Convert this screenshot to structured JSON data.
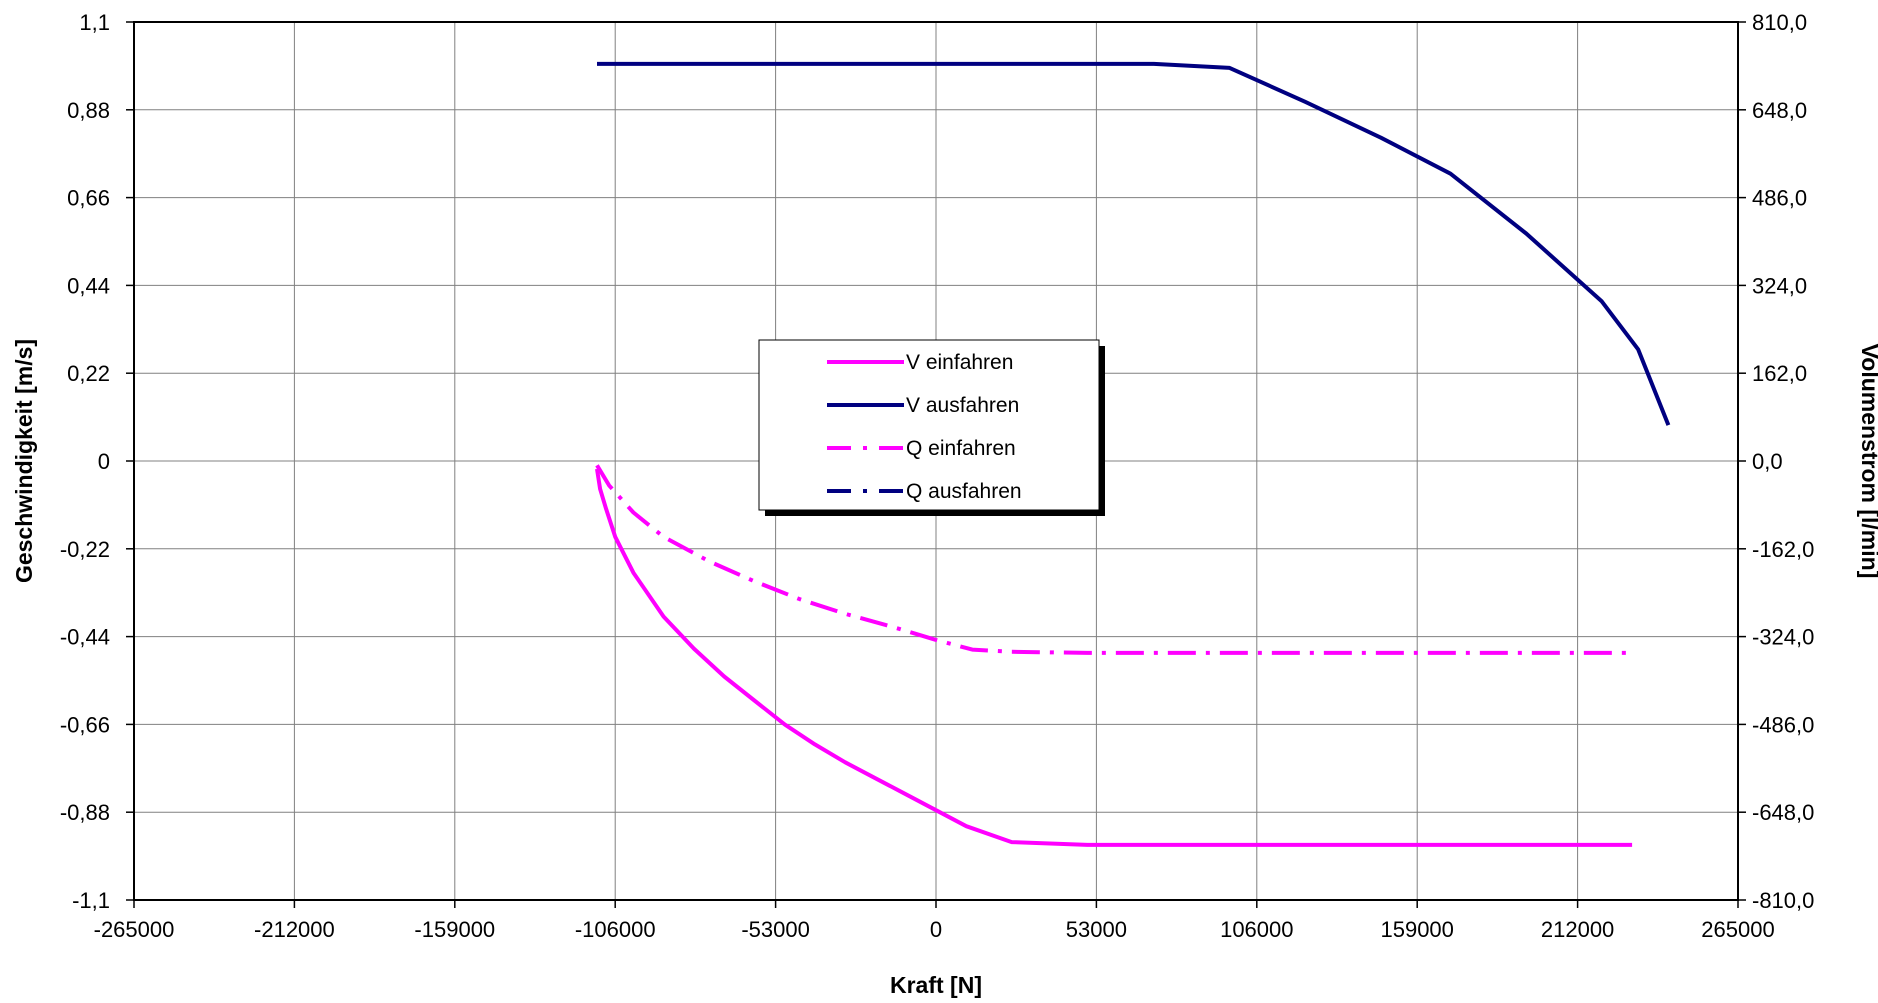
{
  "chart_data": {
    "type": "line",
    "title": "",
    "xlabel": "Kraft [N]",
    "ylabel": "Geschwindigkeit [m/s]",
    "y2label": "Volumenstrom [l/min]",
    "xlim": [
      -265000,
      265000
    ],
    "ylim": [
      -1.1,
      1.1
    ],
    "y2lim": [
      -810,
      810
    ],
    "xticks": [
      "-265000",
      "-212000",
      "-159000",
      "-106000",
      "-53000",
      "0",
      "53000",
      "106000",
      "159000",
      "212000",
      "265000"
    ],
    "yticks": [
      "1,1",
      "0,88",
      "0,66",
      "0,44",
      "0,22",
      "0",
      "-0,22",
      "-0,44",
      "-0,66",
      "-0,88",
      "-1,1"
    ],
    "y2ticks": [
      "810,0",
      "648,0",
      "486,0",
      "324,0",
      "162,0",
      "0,0",
      "-162,0",
      "-324,0",
      "-486,0",
      "-648,0",
      "-810,0"
    ],
    "grid": true,
    "legend_position": "center",
    "series": [
      {
        "name": "V einfahren",
        "axis": "left",
        "color": "#ff00ff",
        "dash": "solid",
        "x": [
          -112000,
          -111000,
          -109000,
          -106000,
          -100000,
          -90000,
          -80000,
          -70000,
          -60000,
          -50000,
          -40000,
          -30000,
          -20000,
          -10000,
          0,
          10000,
          25000,
          50000,
          100000,
          150000,
          200000,
          230000
        ],
        "y": [
          -0.02,
          -0.07,
          -0.12,
          -0.19,
          -0.28,
          -0.39,
          -0.47,
          -0.54,
          -0.6,
          -0.66,
          -0.71,
          -0.755,
          -0.795,
          -0.835,
          -0.875,
          -0.915,
          -0.955,
          -0.962,
          -0.962,
          -0.962,
          -0.962,
          -0.962
        ]
      },
      {
        "name": "V ausfahren",
        "axis": "left",
        "color": "#000080",
        "dash": "solid",
        "x": [
          -112000,
          -50000,
          0,
          50000,
          72000,
          97000,
          122000,
          147000,
          170000,
          195000,
          220000,
          232000,
          242000
        ],
        "y": [
          0.995,
          0.995,
          0.995,
          0.995,
          0.995,
          0.985,
          0.9,
          0.81,
          0.72,
          0.57,
          0.4,
          0.28,
          0.09
        ]
      },
      {
        "name": "Q einfahren",
        "axis": "right",
        "color": "#ff00ff",
        "dash": "dash-dot",
        "x": [
          -112000,
          -108000,
          -100000,
          -90000,
          -75000,
          -60000,
          -45000,
          -30000,
          -15000,
          0,
          12000,
          25000,
          50000,
          100000,
          150000,
          200000,
          230000
        ],
        "y": [
          -8,
          -45,
          -95,
          -140,
          -185,
          -222,
          -255,
          -282,
          -305,
          -330,
          -348,
          -352,
          -354,
          -354,
          -354,
          -354,
          -354
        ]
      },
      {
        "name": "Q ausfahren",
        "axis": "right",
        "color": "#000080",
        "dash": "dash-dot",
        "x": [],
        "y": []
      }
    ]
  }
}
